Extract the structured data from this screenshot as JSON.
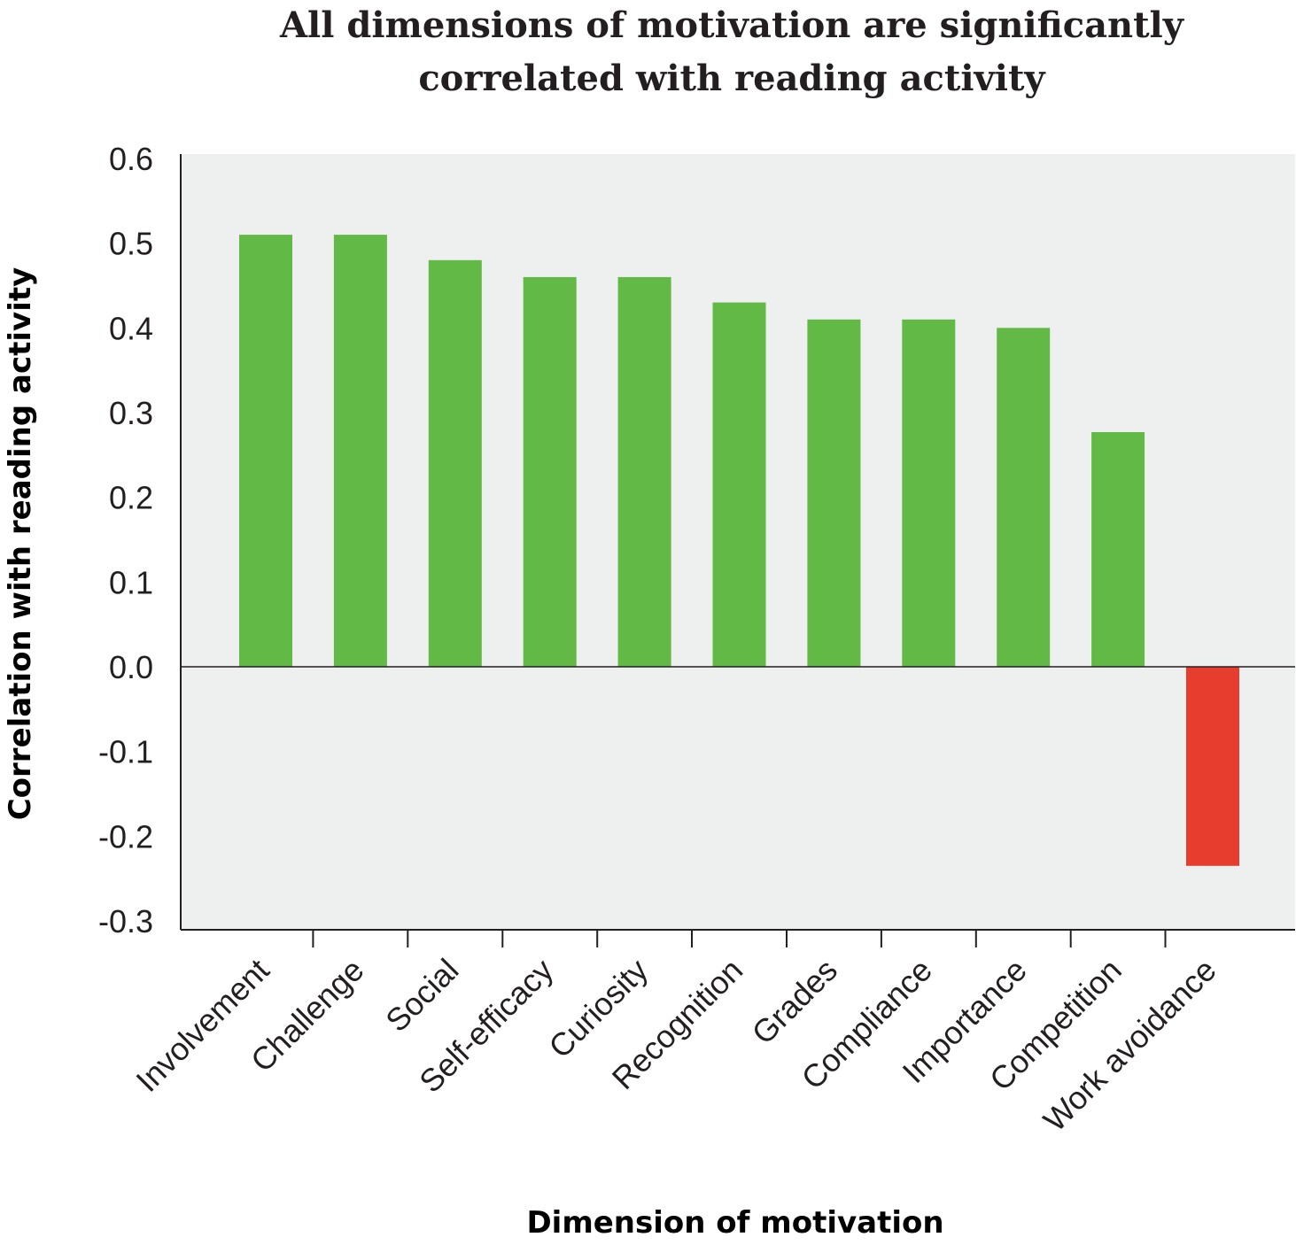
{
  "chart_data": {
    "type": "bar",
    "title_lines": [
      "All dimensions of motivation are significantly",
      "correlated with reading activity"
    ],
    "xlabel": "Dimension of motivation",
    "ylabel": "Correlation with reading activity",
    "ylim": [
      -0.3,
      0.6
    ],
    "yticks": [
      "0.6",
      "0.5",
      "0.4",
      "0.3",
      "0.2",
      "0.1",
      "0.0",
      "-0.1",
      "-0.2",
      "-0.3"
    ],
    "categories": [
      "Involvement",
      "Challenge",
      "Social",
      "Self-efficacy",
      "Curiosity",
      "Recognition",
      "Grades",
      "Compliance",
      "Importance",
      "Competition",
      "Work avoidance"
    ],
    "values": [
      0.51,
      0.51,
      0.48,
      0.46,
      0.46,
      0.43,
      0.41,
      0.41,
      0.4,
      0.277,
      -0.235
    ],
    "grid": false,
    "colors": {
      "positive": "#62b946",
      "negative": "#e63d2f",
      "plot_background": "#eeefef",
      "axis": "#231f20"
    }
  }
}
